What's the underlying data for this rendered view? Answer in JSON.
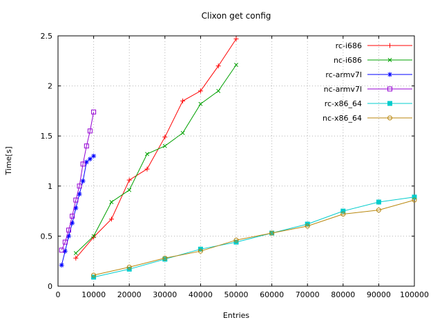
{
  "chart_data": {
    "type": "line",
    "title": "Clixon get config",
    "xlabel": "Entries",
    "ylabel": "Time[s]",
    "xlim": [
      0,
      100000
    ],
    "ylim": [
      0,
      2.5
    ],
    "xticks": [
      0,
      10000,
      20000,
      30000,
      40000,
      50000,
      60000,
      70000,
      80000,
      90000,
      100000
    ],
    "yticks": [
      0,
      0.5,
      1,
      1.5,
      2,
      2.5
    ],
    "grid": true,
    "legend_position": "top-right-inside",
    "series": [
      {
        "name": "rc-i686",
        "color": "#ff0000",
        "marker": "plus",
        "x": [
          5000,
          10000,
          15000,
          20000,
          25000,
          30000,
          35000,
          40000,
          45000,
          50000
        ],
        "y": [
          0.28,
          0.49,
          0.67,
          1.06,
          1.17,
          1.49,
          1.85,
          1.95,
          2.2,
          2.47
        ]
      },
      {
        "name": "nc-i686",
        "color": "#00a000",
        "marker": "cross",
        "x": [
          5000,
          10000,
          15000,
          20000,
          25000,
          30000,
          35000,
          40000,
          45000,
          50000
        ],
        "y": [
          0.33,
          0.5,
          0.84,
          0.96,
          1.32,
          1.4,
          1.53,
          1.82,
          1.95,
          2.21
        ]
      },
      {
        "name": "rc-armv7l",
        "color": "#0000ff",
        "marker": "asterisk",
        "x": [
          1000,
          2000,
          3000,
          4000,
          5000,
          6000,
          7000,
          8000,
          9000,
          10000
        ],
        "y": [
          0.21,
          0.35,
          0.5,
          0.63,
          0.78,
          0.92,
          1.05,
          1.24,
          1.27,
          1.3
        ]
      },
      {
        "name": "nc-armv7l",
        "color": "#9400d3",
        "marker": "open-square",
        "x": [
          1000,
          2000,
          3000,
          4000,
          5000,
          6000,
          7000,
          8000,
          9000,
          10000
        ],
        "y": [
          0.36,
          0.44,
          0.56,
          0.7,
          0.86,
          1.0,
          1.22,
          1.4,
          1.55,
          1.74
        ]
      },
      {
        "name": "rc-x86_64",
        "color": "#00cccc",
        "marker": "filled-square",
        "x": [
          10000,
          20000,
          30000,
          40000,
          50000,
          60000,
          70000,
          80000,
          90000,
          100000
        ],
        "y": [
          0.09,
          0.17,
          0.27,
          0.37,
          0.44,
          0.53,
          0.62,
          0.75,
          0.84,
          0.89
        ]
      },
      {
        "name": "nc-x86_64",
        "color": "#b8860b",
        "marker": "open-circle",
        "x": [
          10000,
          20000,
          30000,
          40000,
          50000,
          60000,
          70000,
          80000,
          90000,
          100000
        ],
        "y": [
          0.11,
          0.19,
          0.28,
          0.35,
          0.46,
          0.53,
          0.6,
          0.72,
          0.76,
          0.86
        ]
      }
    ]
  }
}
